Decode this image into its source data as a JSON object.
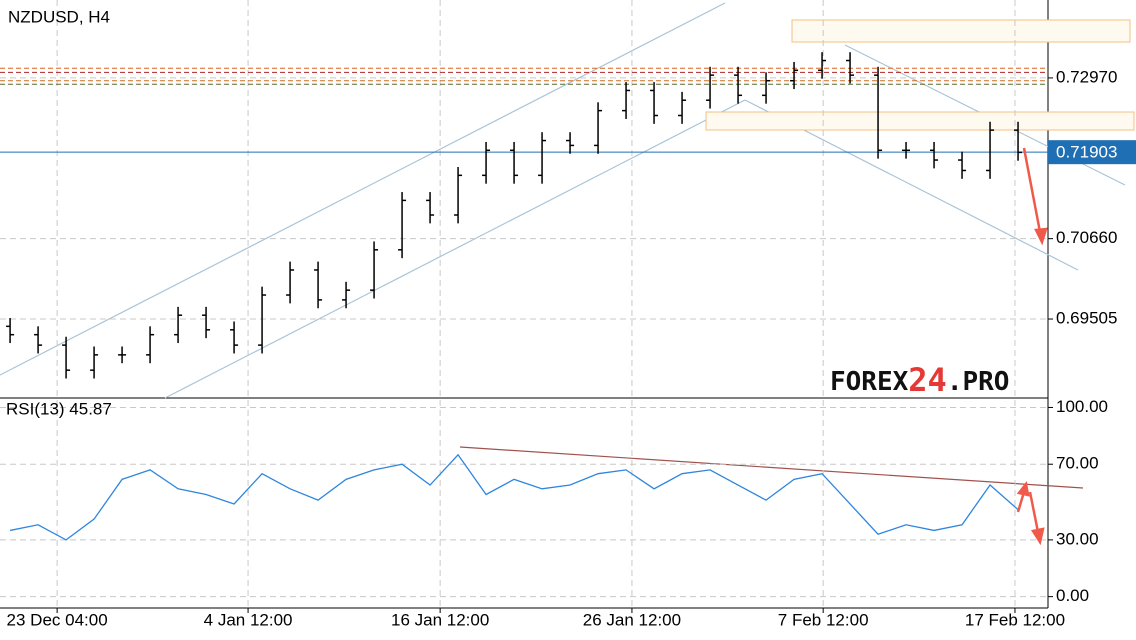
{
  "chart_data": [
    {
      "type": "ohlc",
      "title": "NZDUSD, H4",
      "color": "#000000",
      "xlim": [
        -0.36,
        37.07
      ],
      "ylim": [
        0.6837,
        0.7409
      ],
      "yticks": [
        {
          "value": 0.69505,
          "label": "0.69505"
        },
        {
          "value": 0.7066,
          "label": "0.70660"
        },
        {
          "value": 0.7297,
          "label": "0.72970"
        }
      ],
      "grid": true,
      "open": [
        0.694,
        0.6928,
        0.6913,
        0.6877,
        0.6899,
        0.6899,
        0.6928,
        0.6956,
        0.6935,
        0.6913,
        0.6985,
        0.7021,
        0.6978,
        0.6992,
        0.705,
        0.7121,
        0.71,
        0.7157,
        0.7193,
        0.7157,
        0.7207,
        0.72,
        0.725,
        0.7279,
        0.7243,
        0.7265,
        0.7301,
        0.7272,
        0.7293,
        0.7308,
        0.7322,
        0.7301,
        0.7193,
        0.7193,
        0.7179,
        0.7164,
        0.7222
      ],
      "high": [
        0.6952,
        0.694,
        0.6925,
        0.6911,
        0.6911,
        0.694,
        0.6968,
        0.6968,
        0.6947,
        0.6997,
        0.7033,
        0.7033,
        0.7004,
        0.7062,
        0.7133,
        0.7133,
        0.7169,
        0.7205,
        0.7205,
        0.7219,
        0.7219,
        0.7262,
        0.7291,
        0.7291,
        0.7277,
        0.7313,
        0.7313,
        0.7305,
        0.732,
        0.7334,
        0.7334,
        0.7313,
        0.7205,
        0.7205,
        0.7191,
        0.7234,
        0.7234
      ],
      "low": [
        0.6916,
        0.6901,
        0.6865,
        0.6865,
        0.6887,
        0.6887,
        0.6916,
        0.6923,
        0.6901,
        0.6901,
        0.6973,
        0.6966,
        0.6966,
        0.698,
        0.7038,
        0.7088,
        0.7088,
        0.7145,
        0.7145,
        0.7145,
        0.7188,
        0.7188,
        0.7238,
        0.7231,
        0.7231,
        0.7253,
        0.726,
        0.726,
        0.7281,
        0.7296,
        0.7289,
        0.7181,
        0.7181,
        0.7167,
        0.7152,
        0.7152,
        0.7178
      ],
      "close": [
        0.6928,
        0.6913,
        0.6877,
        0.6899,
        0.6899,
        0.6928,
        0.6956,
        0.6935,
        0.6913,
        0.6985,
        0.7021,
        0.6978,
        0.6992,
        0.705,
        0.7121,
        0.71,
        0.7157,
        0.7193,
        0.7157,
        0.7207,
        0.72,
        0.725,
        0.7279,
        0.7243,
        0.7265,
        0.7301,
        0.7272,
        0.7293,
        0.7308,
        0.7322,
        0.7301,
        0.7193,
        0.7193,
        0.7179,
        0.7164,
        0.7222,
        0.719
      ],
      "levels": [
        0.7311,
        0.7305,
        0.7293,
        0.7288
      ],
      "level_colors": [
        "#d2691e",
        "#b22222",
        "#d2691e",
        "#556b2f"
      ],
      "last_price": {
        "value": 0.71903,
        "label": "0.71903"
      },
      "last_price_color": "#1f6fb4",
      "watermark": [
        "FOREX",
        "24",
        ".PRO"
      ]
    },
    {
      "type": "line",
      "title": "RSI(13) 45.87",
      "color": "#2e86de",
      "xlim": [
        -0.36,
        37.07
      ],
      "ylim": [
        -6,
        105
      ],
      "yticks": [
        {
          "value": 0,
          "label": "0.00"
        },
        {
          "value": 30,
          "label": "30.00"
        },
        {
          "value": 70,
          "label": "70.00"
        },
        {
          "value": 100,
          "label": "100.00"
        }
      ],
      "xticks": [
        {
          "value": 1.68,
          "label": "23 Dec 04:00"
        },
        {
          "value": 8.5,
          "label": "4 Jan 12:00"
        },
        {
          "value": 15.36,
          "label": "16 Jan 12:00"
        },
        {
          "value": 22.21,
          "label": "26 Jan 12:00"
        },
        {
          "value": 29.04,
          "label": "7 Feb 12:00"
        },
        {
          "value": 35.89,
          "label": "17 Feb 12:00"
        }
      ],
      "grid": true,
      "values": [
        35,
        38,
        30,
        41,
        62,
        67,
        57,
        54,
        49,
        65,
        57,
        51,
        62,
        67,
        70,
        59,
        75,
        54,
        62,
        57,
        59,
        65,
        67,
        57,
        65,
        67,
        59,
        51,
        62,
        65,
        49,
        33,
        38,
        35,
        38,
        59,
        46
      ]
    }
  ]
}
